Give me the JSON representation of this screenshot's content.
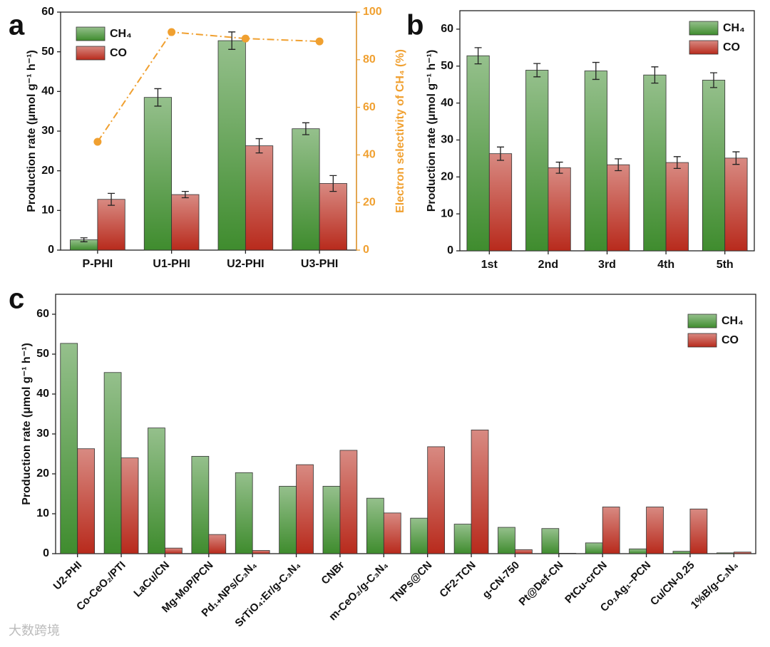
{
  "chart_data": [
    {
      "type": "bar",
      "panel_label": "a",
      "ylabel": "Production rate (μmol g⁻¹ h⁻¹)",
      "y2label": "Electron selectivity of CH₄ (%)",
      "categories": [
        "P-PHI",
        "U1-PHI",
        "U2-PHI",
        "U3-PHI"
      ],
      "series": [
        {
          "name": "CH₄",
          "color": "#3f8c2e",
          "values": [
            2.6,
            38.5,
            52.8,
            30.6
          ],
          "errors": [
            0.5,
            2.2,
            2.2,
            1.5
          ]
        },
        {
          "name": "CO",
          "color": "#b82a1c",
          "values": [
            12.8,
            14.0,
            26.3,
            16.8
          ],
          "errors": [
            1.5,
            0.8,
            1.8,
            2.0
          ]
        },
        {
          "color": "#f0a030",
          "axis": "y2",
          "values": [
            45.5,
            91.6,
            88.9,
            87.7
          ]
        }
      ],
      "ylim": [
        0,
        60
      ],
      "yticks": [
        0,
        10,
        20,
        30,
        40,
        50,
        60
      ],
      "y2lim": [
        0,
        100
      ],
      "y2ticks": [
        0,
        20,
        40,
        60,
        80,
        100
      ],
      "y2color": "#f0a030",
      "legend": "upper left"
    },
    {
      "type": "bar",
      "panel_label": "b",
      "ylabel": "Production rate (μmol g⁻¹ h⁻¹)",
      "categories": [
        "1st",
        "2nd",
        "3rd",
        "4th",
        "5th"
      ],
      "series": [
        {
          "name": "CH₄",
          "color": "#3f8c2e",
          "values": [
            52.8,
            48.9,
            48.7,
            47.6,
            46.2
          ],
          "errors": [
            2.2,
            1.8,
            2.3,
            2.2,
            2.0
          ]
        },
        {
          "name": "CO",
          "color": "#b82a1c",
          "values": [
            26.3,
            22.5,
            23.3,
            23.9,
            25.1
          ],
          "errors": [
            1.8,
            1.5,
            1.6,
            1.6,
            1.7
          ]
        }
      ],
      "ylim": [
        0,
        65
      ],
      "yticks": [
        0,
        10,
        20,
        30,
        40,
        50,
        60
      ],
      "legend": "upper right"
    },
    {
      "type": "bar",
      "panel_label": "c",
      "ylabel": "Production rate (μmol g⁻¹ h⁻¹)",
      "categories": [
        "U2-PHI",
        "Co-CeO₂/PTI",
        "LaCu/CN",
        "Mg-MoP/PCN",
        "Pd₁₊NPs/C₃N₄",
        "SrTiO₄:Er/g-C₃N₄",
        "CNBr",
        "m-CeO₂/g-C₃N₄",
        "TNPs@CN",
        "CF2-TCN",
        "g-CN-750",
        "Pt@Def-CN",
        "PtCu-crCN",
        "Co₁Ag₁–PCN",
        "Cu/CN-0.25",
        "1%B/g-C₃N₄"
      ],
      "series": [
        {
          "name": "CH₄",
          "color": "#3f8c2e",
          "values": [
            52.7,
            45.4,
            31.5,
            24.4,
            20.3,
            16.9,
            16.9,
            13.9,
            8.9,
            7.4,
            6.6,
            6.3,
            2.7,
            1.2,
            0.6,
            0.2
          ]
        },
        {
          "name": "CO",
          "color": "#b82a1c",
          "values": [
            26.3,
            24.0,
            1.4,
            4.8,
            0.8,
            22.3,
            25.9,
            10.2,
            26.8,
            31.0,
            1.0,
            0.1,
            11.7,
            11.7,
            11.2,
            0.4
          ]
        }
      ],
      "ylim": [
        0,
        65
      ],
      "yticks": [
        0,
        10,
        20,
        30,
        40,
        50,
        60
      ],
      "legend": "upper right"
    }
  ],
  "watermark": "大数跨境"
}
